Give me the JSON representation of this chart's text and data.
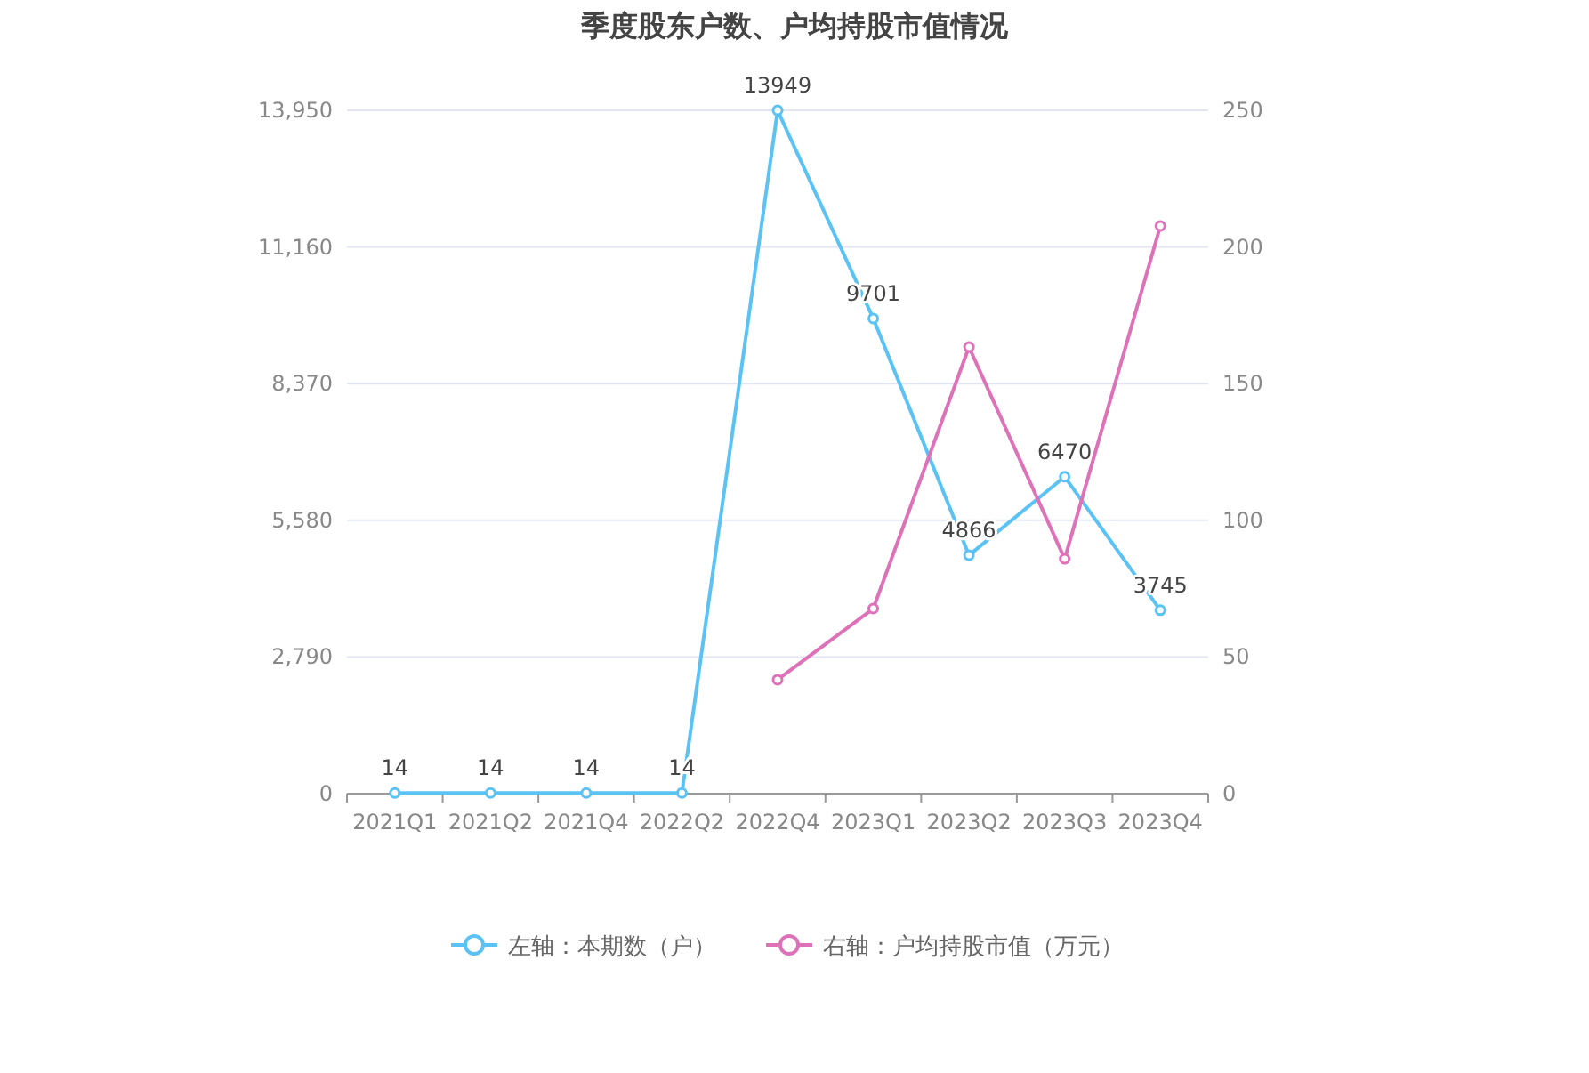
{
  "chart_data": {
    "type": "line",
    "title": "季度股东户数、户均持股市值情况",
    "categories": [
      "2021Q1",
      "2021Q2",
      "2021Q4",
      "2022Q2",
      "2022Q4",
      "2023Q1",
      "2023Q2",
      "2023Q3",
      "2023Q4"
    ],
    "series": [
      {
        "name": "左轴：本期数（户）",
        "color": "#5bc2f5",
        "values": [
          14,
          14,
          14,
          14,
          13949,
          9701,
          4866,
          6470,
          3745
        ],
        "value_labels": [
          "14",
          "14",
          "14",
          "14",
          "13949",
          "9701",
          "4866",
          "6470",
          "3745"
        ]
      },
      {
        "name": "右轴：户均持股市值（万元）",
        "color": "#dd72b9",
        "axis": "y2",
        "values": [
          null,
          null,
          null,
          null,
          41.7,
          67.7,
          163.4,
          85.9,
          207.7
        ]
      }
    ],
    "ylim": [
      0,
      13950
    ],
    "yticks": [
      0,
      {
        "value": 2790,
        "label": "2,790"
      },
      {
        "value": 5580,
        "label": "5,580"
      },
      {
        "value": 8370,
        "label": "8,370"
      },
      {
        "value": 11160,
        "label": "11,160"
      },
      {
        "value": 13950,
        "label": "13,950"
      }
    ],
    "y2lim": [
      0,
      250
    ],
    "y2ticks": [
      0,
      50,
      100,
      150,
      200,
      250
    ],
    "grid": "y",
    "legend": "bottom",
    "marker": "circle",
    "line_style": "solid"
  }
}
